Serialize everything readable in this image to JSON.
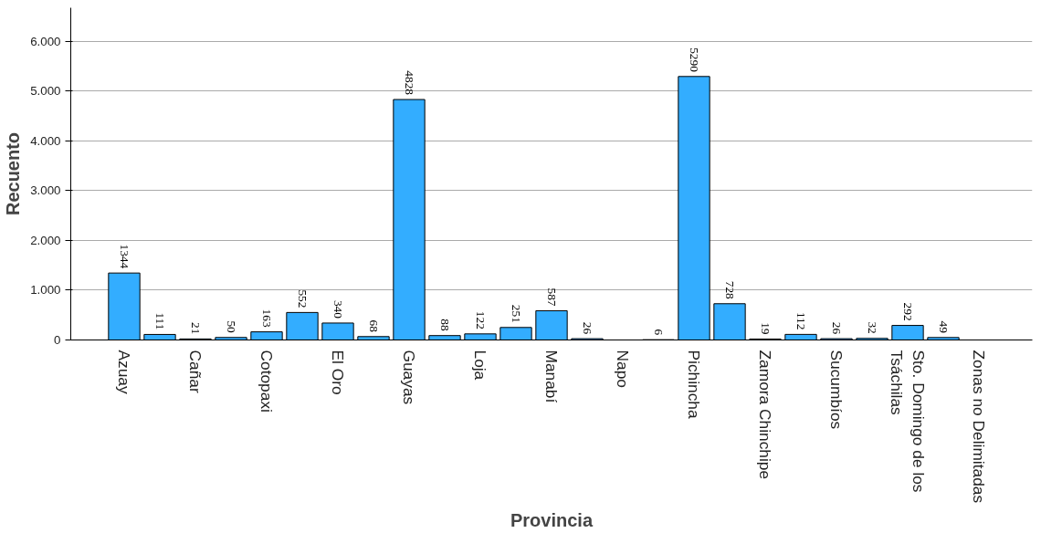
{
  "chart_data": {
    "type": "bar",
    "xlabel": "Provincia",
    "ylabel": "Recuento",
    "categories": [
      "Azuay",
      null,
      "Cañar",
      null,
      "Cotopaxi",
      null,
      "El Oro",
      null,
      "Guayas",
      null,
      "Loja",
      null,
      "Manabí",
      null,
      "Napo",
      null,
      "Pichincha",
      null,
      "Zamora Chinchipe",
      null,
      "Sucumbíos",
      null,
      "Sto. Domingo de los Tsáchilas",
      null,
      "Zonas no Delimitadas"
    ],
    "values": [
      1344,
      111,
      21,
      50,
      163,
      552,
      340,
      68,
      4828,
      88,
      122,
      251,
      587,
      26,
      null,
      6,
      5290,
      728,
      19,
      112,
      26,
      32,
      292,
      49,
      null
    ],
    "color": "#33adff",
    "data_labels": true,
    "ylim": [
      0,
      6670
    ],
    "yticks": [
      0,
      {
        "value": 1000,
        "label": "1.000"
      },
      {
        "value": 2000,
        "label": "2.000"
      },
      {
        "value": 3000,
        "label": "3.000"
      },
      {
        "value": 4000,
        "label": "4.000"
      },
      {
        "value": 5000,
        "label": "5.000"
      },
      {
        "value": 6000,
        "label": "6.000"
      }
    ],
    "grid": "y"
  }
}
